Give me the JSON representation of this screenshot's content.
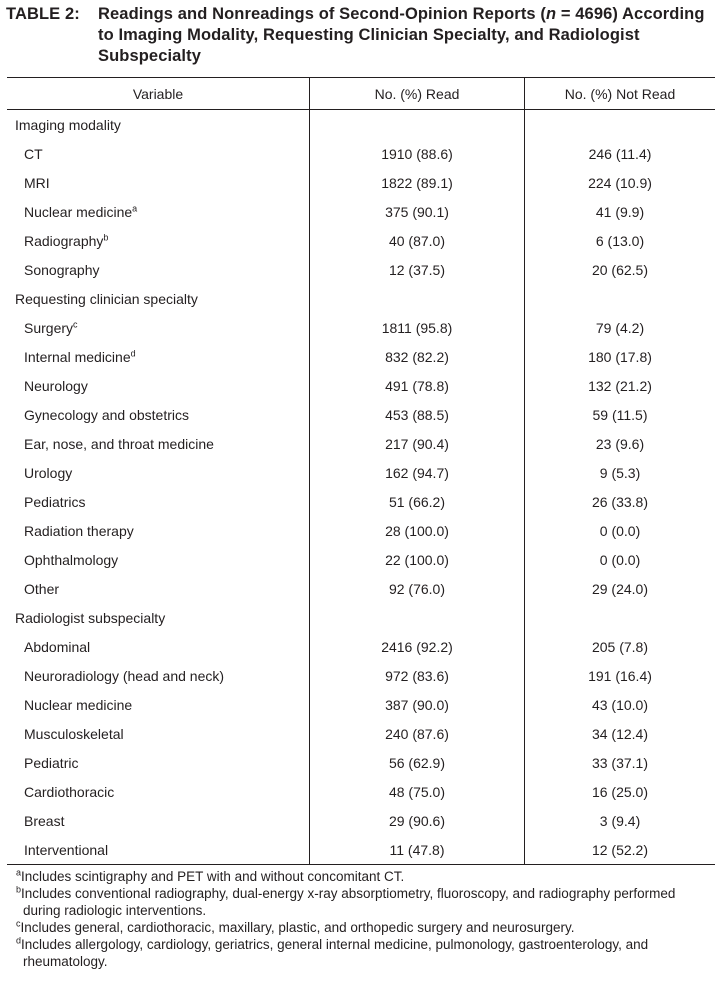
{
  "title": {
    "prefix": "TABLE 2:",
    "before": "Readings and Nonreadings of Second-Opinion Reports (",
    "italic": "n",
    "after": " = 4696) According to Imaging Modality, Requesting Clinician Specialty, and Radiologist Subspecialty"
  },
  "table": {
    "headers": [
      "Variable",
      "No. (%) Read",
      "No. (%) Not Read"
    ],
    "sections": [
      {
        "title": "Imaging modality",
        "rows": [
          {
            "label": "CT",
            "read": "1910 (88.6)",
            "not_read": "246 (11.4)"
          },
          {
            "label": "MRI",
            "read": "1822 (89.1)",
            "not_read": "224 (10.9)"
          },
          {
            "label": "Nuclear medicine",
            "note": "a",
            "read": "375 (90.1)",
            "not_read": "41 (9.9)"
          },
          {
            "label": "Radiography",
            "note": "b",
            "read": "40 (87.0)",
            "not_read": "6 (13.0)"
          },
          {
            "label": "Sonography",
            "read": "12 (37.5)",
            "not_read": "20 (62.5)"
          }
        ]
      },
      {
        "title": "Requesting clinician specialty",
        "rows": [
          {
            "label": "Surgery",
            "note": "c",
            "read": "1811 (95.8)",
            "not_read": "79 (4.2)"
          },
          {
            "label": "Internal medicine",
            "note": "d",
            "read": "832 (82.2)",
            "not_read": "180 (17.8)"
          },
          {
            "label": "Neurology",
            "read": "491 (78.8)",
            "not_read": "132 (21.2)"
          },
          {
            "label": "Gynecology and obstetrics",
            "read": "453 (88.5)",
            "not_read": "59 (11.5)"
          },
          {
            "label": "Ear, nose, and throat medicine",
            "read": "217 (90.4)",
            "not_read": "23 (9.6)"
          },
          {
            "label": "Urology",
            "read": "162 (94.7)",
            "not_read": "9 (5.3)"
          },
          {
            "label": "Pediatrics",
            "read": "51 (66.2)",
            "not_read": "26 (33.8)"
          },
          {
            "label": "Radiation therapy",
            "read": "28 (100.0)",
            "not_read": "0 (0.0)"
          },
          {
            "label": "Ophthalmology",
            "read": "22 (100.0)",
            "not_read": "0 (0.0)"
          },
          {
            "label": "Other",
            "read": "92 (76.0)",
            "not_read": "29 (24.0)"
          }
        ]
      },
      {
        "title": "Radiologist subspecialty",
        "rows": [
          {
            "label": "Abdominal",
            "read": "2416 (92.2)",
            "not_read": "205 (7.8)"
          },
          {
            "label": "Neuroradiology (head and neck)",
            "read": "972 (83.6)",
            "not_read": "191 (16.4)"
          },
          {
            "label": "Nuclear medicine",
            "read": "387 (90.0)",
            "not_read": "43 (10.0)"
          },
          {
            "label": "Musculoskeletal",
            "read": "240 (87.6)",
            "not_read": "34 (12.4)"
          },
          {
            "label": "Pediatric",
            "read": "56 (62.9)",
            "not_read": "33 (37.1)"
          },
          {
            "label": "Cardiothoracic",
            "read": "48 (75.0)",
            "not_read": "16 (25.0)"
          },
          {
            "label": "Breast",
            "read": "29 (90.6)",
            "not_read": "3 (9.4)"
          },
          {
            "label": "Interventional",
            "read": "11 (47.8)",
            "not_read": "12 (52.2)"
          }
        ]
      }
    ]
  },
  "footnotes": [
    {
      "marker": "a",
      "text": "Includes scintigraphy and PET with and without concomitant CT."
    },
    {
      "marker": "b",
      "text": "Includes conventional radiography, dual-energy x-ray absorptiometry, fluoroscopy, and radiography performed during radiologic interventions."
    },
    {
      "marker": "c",
      "text": "Includes general, cardiothoracic, maxillary, plastic, and orthopedic surgery and neurosurgery."
    },
    {
      "marker": "d",
      "text": "Includes allergology, cardiology, geriatrics, general internal medicine, pulmonology, gastroenterology, and rheumatology."
    }
  ]
}
